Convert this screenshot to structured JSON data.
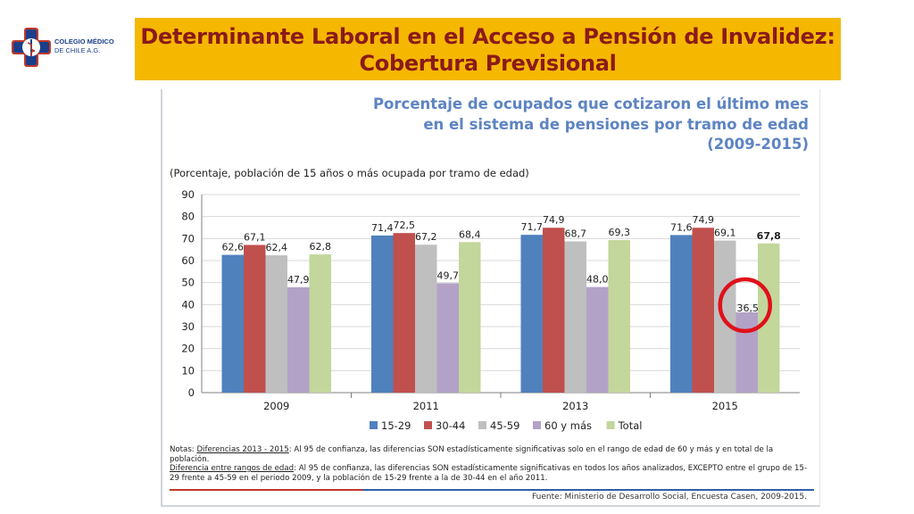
{
  "logo": {
    "line1": "COLEGIO MÉDICO",
    "line2": "DE CHILE A.G."
  },
  "banner": {
    "title": "Determinante Laboral en el Acceso a Pensión de Invalidez: Cobertura Previsional",
    "bg": "#f5b700",
    "color": "#8b1a1a"
  },
  "chart_data": {
    "type": "bar",
    "title": "Porcentaje de ocupados que cotizaron el último mes en el sistema de pensiones por tramo de edad (2009-2015)",
    "subtitle": "(Porcentaje, población de 15 años o más ocupada por tramo de edad)",
    "categories": [
      "2009",
      "2011",
      "2013",
      "2015"
    ],
    "series": [
      {
        "name": "15-29",
        "color": "#4f81bd",
        "values": [
          62.6,
          71.4,
          71.7,
          71.6
        ],
        "labels": [
          "62,6",
          "71,4",
          "71,7",
          "71,6"
        ]
      },
      {
        "name": "30-44",
        "color": "#c0504d",
        "values": [
          67.1,
          72.5,
          74.9,
          74.9
        ],
        "labels": [
          "67,1",
          "72,5",
          "74,9",
          "74,9"
        ]
      },
      {
        "name": "45-59",
        "color": "#bfbfbf",
        "values": [
          62.4,
          67.2,
          68.7,
          69.1
        ],
        "labels": [
          "62,4",
          "67,2",
          "68,7",
          "69,1"
        ]
      },
      {
        "name": "60 y más",
        "color": "#b3a2c7",
        "values": [
          47.9,
          49.7,
          48.0,
          36.5
        ],
        "labels": [
          "47,9",
          "49,7",
          "48,0",
          "36,5"
        ]
      },
      {
        "name": "Total",
        "color": "#c3d69b",
        "values": [
          62.8,
          68.4,
          69.3,
          67.8
        ],
        "labels": [
          "62,8",
          "68,4",
          "69,3",
          "67,8"
        ]
      }
    ],
    "ylim": [
      0,
      90
    ],
    "yticks": [
      0,
      10,
      20,
      30,
      40,
      50,
      60,
      70,
      80,
      90
    ],
    "highlight": {
      "category": "2015",
      "series": "60 y más",
      "color": "#e0101a"
    },
    "legend": "bottom"
  },
  "notes": {
    "n1_prefix": "Notas: ",
    "n1_title": "Diferencias 2013 - 2015",
    "n1_text": ": Al 95 de confianza, las diferencias SON estadísticamente significativas solo en el rango de edad de 60 y más y en total de la población.",
    "n2_title": "Diferencia entre rangos de edad",
    "n2_text": ": Al 95 de confianza, las diferencias SON estadísticamente significativas en todos los años analizados, EXCEPTO entre el grupo de 15-29 frente a 45-59 en el periodo 2009, y la población de 15-29 frente a la de 30-44 en el año 2011."
  },
  "source": "Fuente: Ministerio de Desarrollo Social, Encuesta Casen, 2009-2015."
}
